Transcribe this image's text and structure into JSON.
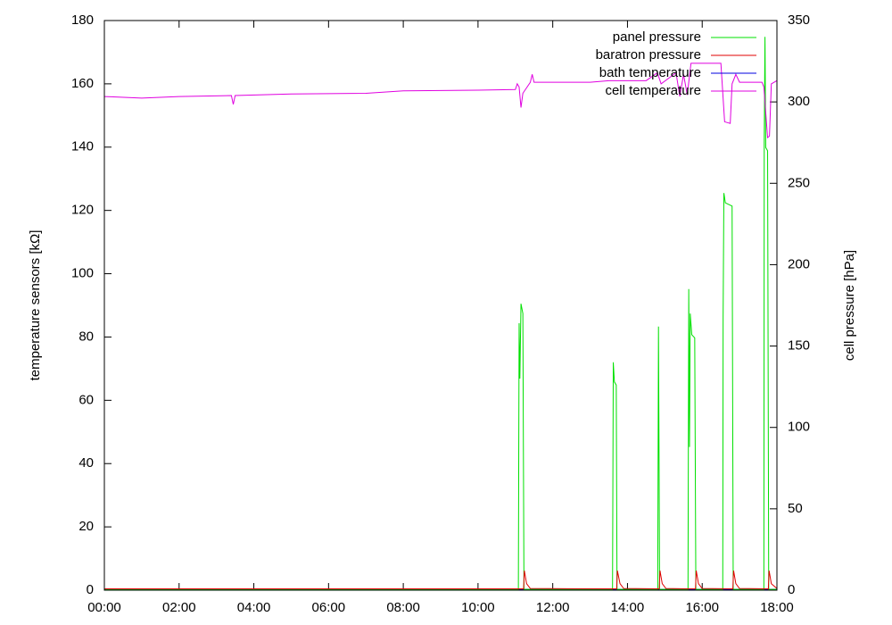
{
  "chart_data": {
    "type": "line",
    "y_label": "temperature sensors [kΩ]",
    "y2_label": "cell pressure [hPa]",
    "xlim": [
      0,
      18
    ],
    "xticks": [
      {
        "value": 0,
        "label": "00:00"
      },
      {
        "value": 2,
        "label": "02:00"
      },
      {
        "value": 4,
        "label": "04:00"
      },
      {
        "value": 6,
        "label": "06:00"
      },
      {
        "value": 8,
        "label": "08:00"
      },
      {
        "value": 10,
        "label": "10:00"
      },
      {
        "value": 12,
        "label": "12:00"
      },
      {
        "value": 14,
        "label": "14:00"
      },
      {
        "value": 16,
        "label": "16:00"
      },
      {
        "value": 18,
        "label": "18:00"
      }
    ],
    "ylim": [
      0,
      180
    ],
    "yticks": [
      0,
      20,
      40,
      60,
      80,
      100,
      120,
      140,
      160,
      180
    ],
    "y2lim": [
      0,
      350
    ],
    "y2ticks": [
      0,
      50,
      100,
      150,
      200,
      250,
      300,
      350
    ],
    "legend": "upper right",
    "series": [
      {
        "name": "panel pressure",
        "color": "#00e000",
        "axis": "y2",
        "x": [
          0,
          5,
          11.08,
          11.1,
          11.12,
          11.15,
          11.2,
          11.23,
          13.6,
          13.62,
          13.65,
          13.7,
          13.72,
          14.81,
          14.83,
          14.86,
          15.62,
          15.64,
          15.66,
          15.68,
          15.72,
          15.8,
          15.83,
          16.55,
          16.56,
          16.58,
          16.62,
          16.8,
          16.83,
          17.65,
          17.66,
          17.68,
          17.7,
          17.75,
          17.78,
          18
        ],
        "values": [
          0.5,
          0.5,
          0.5,
          164,
          130,
          176,
          170,
          0.5,
          0.5,
          140,
          128,
          126,
          0.5,
          0.5,
          162,
          0.5,
          0.5,
          185,
          88,
          170,
          157,
          155,
          0.5,
          0.5,
          168,
          244,
          238,
          236,
          0.5,
          0.5,
          275,
          340,
          272,
          270,
          0.5,
          0.5
        ]
      },
      {
        "name": "baratron pressure",
        "color": "#e00000",
        "axis": "y2",
        "x": [
          0,
          11.22,
          11.24,
          11.3,
          11.4,
          13.71,
          13.73,
          13.8,
          13.9,
          14.85,
          14.87,
          14.93,
          15.03,
          15.82,
          15.84,
          15.9,
          16,
          16.82,
          16.84,
          16.9,
          17,
          17.77,
          17.79,
          17.85,
          18
        ],
        "values": [
          0.8,
          0.8,
          12,
          4,
          1,
          0.8,
          12,
          4,
          1,
          0.8,
          12,
          4,
          1,
          0.8,
          12,
          4,
          1,
          0.8,
          12,
          4,
          1,
          0.8,
          12,
          4,
          1
        ]
      },
      {
        "name": "bath temperature",
        "color": "#0000e0",
        "x": [
          0,
          9,
          18
        ],
        "values": [
          0.3,
          0.3,
          0.3
        ]
      },
      {
        "name": "cell temperature",
        "color": "#e000e0",
        "x": [
          0,
          1,
          2,
          3.4,
          3.45,
          3.5,
          5,
          7,
          8,
          10,
          11,
          11.05,
          11.1,
          11.15,
          11.2,
          11.4,
          11.45,
          11.5,
          13,
          13.5,
          14.5,
          14.8,
          14.9,
          15.3,
          15.4,
          15.5,
          15.6,
          15.7,
          16.5,
          16.6,
          16.75,
          16.8,
          16.9,
          17,
          17.6,
          17.65,
          17.75,
          17.8,
          17.85,
          18
        ],
        "values": [
          156,
          155.5,
          156,
          156.3,
          153.5,
          156.3,
          156.8,
          157,
          157.8,
          158,
          158.2,
          160,
          159,
          152.5,
          157,
          160.5,
          163,
          160.5,
          160.5,
          161,
          161,
          163.5,
          160,
          163.5,
          156,
          163,
          156.5,
          166.5,
          166.5,
          148,
          147.5,
          160,
          163,
          160.5,
          160.5,
          159,
          143,
          143.5,
          160,
          161
        ]
      }
    ]
  }
}
